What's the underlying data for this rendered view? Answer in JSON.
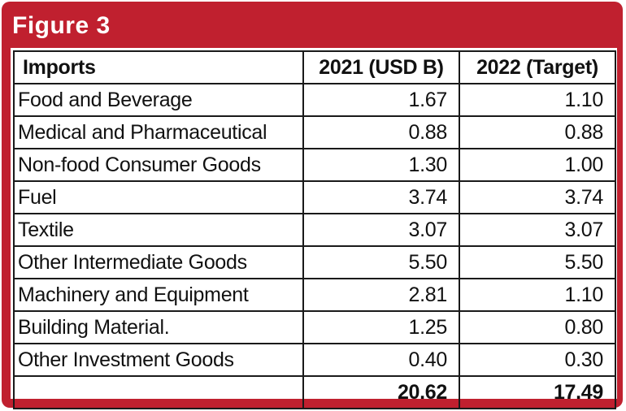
{
  "figure": {
    "title": "Figure 3",
    "frame_color": "#c0202f"
  },
  "chart_data": {
    "type": "table",
    "columns": [
      "Imports",
      "2021 (USD B)",
      "2022 (Target)"
    ],
    "rows": [
      {
        "label": "Food and Beverage",
        "y2021": "1.67",
        "y2022": "1.10"
      },
      {
        "label": "Medical and Pharmaceutical",
        "y2021": "0.88",
        "y2022": "0.88"
      },
      {
        "label": "Non-food Consumer Goods",
        "y2021": "1.30",
        "y2022": "1.00"
      },
      {
        "label": "Fuel",
        "y2021": "3.74",
        "y2022": "3.74"
      },
      {
        "label": "Textile",
        "y2021": "3.07",
        "y2022": "3.07"
      },
      {
        "label": "Other Intermediate Goods",
        "y2021": "5.50",
        "y2022": "5.50"
      },
      {
        "label": "Machinery and Equipment",
        "y2021": "2.81",
        "y2022": "1.10"
      },
      {
        "label": "Building Material.",
        "y2021": "1.25",
        "y2022": "0.80"
      },
      {
        "label": "Other Investment Goods",
        "y2021": "0.40",
        "y2022": "0.30"
      }
    ],
    "total": {
      "label": "",
      "y2021": "20.62",
      "y2022": "17.49"
    }
  }
}
